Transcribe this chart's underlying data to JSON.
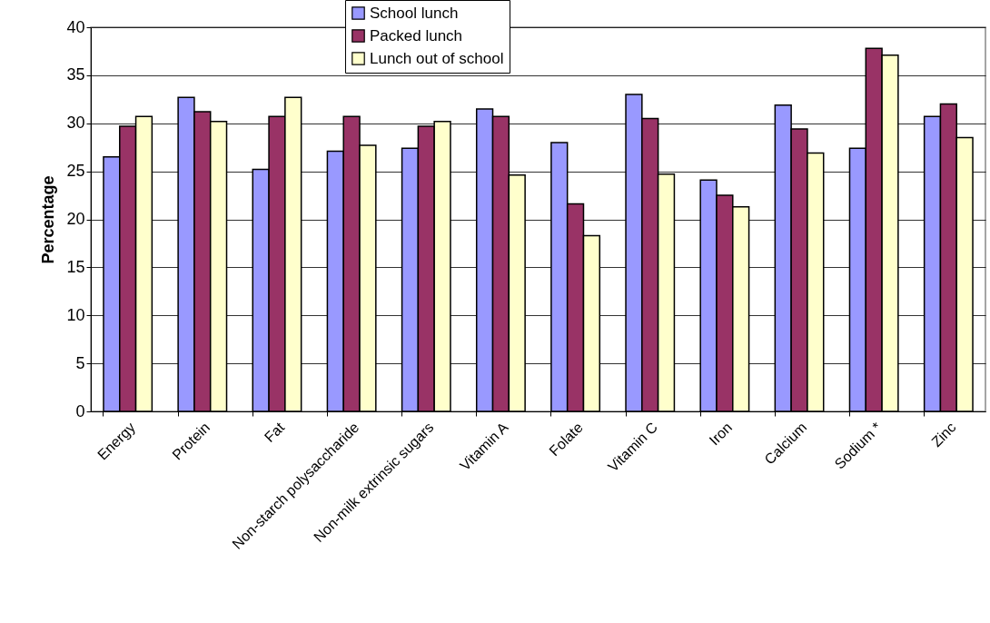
{
  "chart_data": {
    "type": "bar",
    "ylabel": "Percentage",
    "categories": [
      "Energy",
      "Protein",
      "Fat",
      "Non-starch polysaccharide",
      "Non-milk extrinsic sugars",
      "Vitamin A",
      "Folate",
      "Vitamin C",
      "Iron",
      "Calcium",
      "Sodium *",
      "Zinc"
    ],
    "series": [
      {
        "name": "School lunch",
        "color": "#9999ff",
        "values": [
          26.5,
          32.7,
          25.2,
          27.1,
          27.4,
          31.5,
          28.0,
          33.0,
          24.1,
          31.9,
          27.4,
          30.7
        ]
      },
      {
        "name": "Packed lunch",
        "color": "#993366",
        "values": [
          29.7,
          31.2,
          30.7,
          30.7,
          29.7,
          30.7,
          21.6,
          30.5,
          22.5,
          29.4,
          37.8,
          32.0
        ]
      },
      {
        "name": "Lunch out of school",
        "color": "#ffffcc",
        "values": [
          30.7,
          30.2,
          32.7,
          27.7,
          30.2,
          24.6,
          18.3,
          24.7,
          21.3,
          26.9,
          37.1,
          28.5
        ]
      }
    ],
    "ylim": [
      0,
      40
    ],
    "yticks": [
      0,
      5,
      10,
      15,
      20,
      25,
      30,
      35,
      40
    ],
    "grid": "y",
    "legend": "top"
  }
}
